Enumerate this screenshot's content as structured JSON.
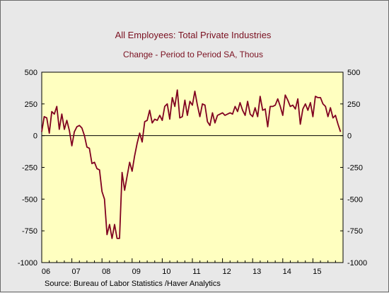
{
  "chart_data": {
    "type": "line",
    "title": "All Employees: Total Private Industries",
    "subtitle": "Change - Period to Period     SA, Thous",
    "source": "Source:  Bureau of Labor Statistics /Haver Analytics",
    "ylim": [
      -1000,
      500
    ],
    "yticks": [
      500,
      250,
      0,
      -250,
      -500,
      -750,
      -1000
    ],
    "ytick_labels_left": [
      "500",
      "250",
      "0",
      "-250",
      "-500",
      "-750",
      "-1000"
    ],
    "ytick_labels_right": [
      "500",
      "250",
      "0",
      "-250",
      "-500",
      "-750",
      "-1000"
    ],
    "xlim": [
      2006.0,
      2016.0
    ],
    "xtick_labels": [
      "06",
      "07",
      "08",
      "09",
      "10",
      "11",
      "12",
      "13",
      "14",
      "15"
    ],
    "xticks": [
      2006.0,
      2007.0,
      2008.0,
      2009.0,
      2010.0,
      2011.0,
      2012.0,
      2013.0,
      2014.0,
      2015.0
    ],
    "plot_background": "#ffffc0",
    "series_color": "#800020",
    "series": [
      {
        "x": [
          2006.0,
          2006.083,
          2006.167,
          2006.25,
          2006.333,
          2006.417,
          2006.5,
          2006.583,
          2006.667,
          2006.75,
          2006.833,
          2006.917,
          2007.0,
          2007.083,
          2007.167,
          2007.25,
          2007.333,
          2007.417,
          2007.5,
          2007.583,
          2007.667,
          2007.75,
          2007.833,
          2007.917,
          2008.0,
          2008.083,
          2008.167,
          2008.25,
          2008.333,
          2008.417,
          2008.5,
          2008.583,
          2008.667,
          2008.75,
          2008.833,
          2008.917,
          2009.0,
          2009.083,
          2009.167,
          2009.25,
          2009.333,
          2009.417,
          2009.5,
          2009.583,
          2009.667,
          2009.75,
          2009.833,
          2009.917,
          2010.0,
          2010.083,
          2010.167,
          2010.25,
          2010.333,
          2010.417,
          2010.5,
          2010.583,
          2010.667,
          2010.75,
          2010.833,
          2010.917,
          2011.0,
          2011.083,
          2011.167,
          2011.25,
          2011.333,
          2011.417,
          2011.5,
          2011.583,
          2011.667,
          2011.75,
          2011.833,
          2011.917,
          2012.0,
          2012.083,
          2012.167,
          2012.25,
          2012.333,
          2012.417,
          2012.5,
          2012.583,
          2012.667,
          2012.75,
          2012.833,
          2012.917,
          2013.0,
          2013.083,
          2013.167,
          2013.25,
          2013.333,
          2013.417,
          2013.5,
          2013.583,
          2013.667,
          2013.75,
          2013.833,
          2013.917,
          2014.0,
          2014.083,
          2014.167,
          2014.25,
          2014.333,
          2014.417,
          2014.5,
          2014.583,
          2014.667,
          2014.75,
          2014.833,
          2014.917,
          2015.0,
          2015.083,
          2015.167,
          2015.25,
          2015.333,
          2015.417,
          2015.5,
          2015.583,
          2015.667,
          2015.75,
          2015.833,
          2015.917
        ],
        "y": [
          30,
          150,
          140,
          20,
          190,
          170,
          230,
          50,
          170,
          50,
          120,
          40,
          -80,
          30,
          70,
          80,
          60,
          0,
          -90,
          -100,
          -220,
          -210,
          -260,
          -270,
          -440,
          -500,
          -780,
          -700,
          -810,
          -700,
          -810,
          -810,
          -290,
          -430,
          -320,
          -210,
          -280,
          -160,
          -60,
          20,
          -50,
          110,
          120,
          200,
          100,
          130,
          120,
          160,
          120,
          230,
          250,
          130,
          300,
          230,
          360,
          140,
          150,
          280,
          160,
          270,
          240,
          350,
          240,
          150,
          250,
          240,
          110,
          80,
          180,
          100,
          160,
          170,
          180,
          160,
          170,
          180,
          170,
          230,
          190,
          260,
          200,
          160,
          270,
          170,
          150,
          220,
          150,
          310,
          200,
          210,
          70,
          230,
          230,
          240,
          290,
          230,
          160,
          320,
          280,
          230,
          240,
          210,
          290,
          90,
          210,
          250,
          200,
          260,
          150,
          310,
          300,
          300,
          250,
          230,
          150,
          220,
          140,
          160,
          90,
          30
        ]
      }
    ]
  }
}
